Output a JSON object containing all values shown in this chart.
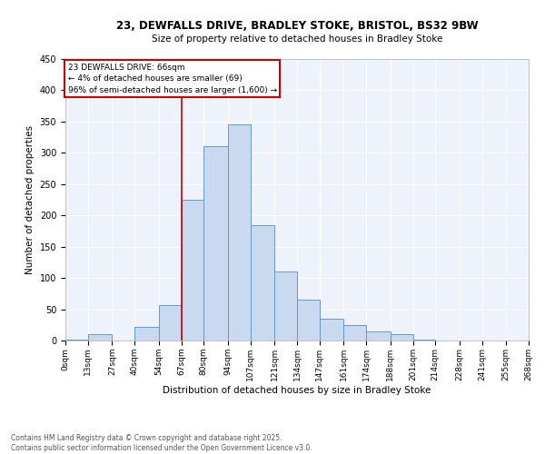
{
  "title_line1": "23, DEWFALLS DRIVE, BRADLEY STOKE, BRISTOL, BS32 9BW",
  "title_line2": "Size of property relative to detached houses in Bradley Stoke",
  "xlabel": "Distribution of detached houses by size in Bradley Stoke",
  "ylabel": "Number of detached properties",
  "footnote": "Contains HM Land Registry data © Crown copyright and database right 2025.\nContains public sector information licensed under the Open Government Licence v3.0.",
  "annotation_title": "23 DEWFALLS DRIVE: 66sqm",
  "annotation_line2": "← 4% of detached houses are smaller (69)",
  "annotation_line3": "96% of semi-detached houses are larger (1,600) →",
  "bar_color": "#c9d9f0",
  "bar_edge_color": "#6699cc",
  "vline_color": "#cc0000",
  "annotation_box_color": "#cc0000",
  "background_color": "#eef2fa",
  "bin_edges": [
    0,
    13,
    27,
    40,
    54,
    67,
    80,
    94,
    107,
    121,
    134,
    147,
    161,
    174,
    188,
    201,
    214,
    228,
    241,
    255,
    268
  ],
  "bin_labels": [
    "0sqm",
    "13sqm",
    "27sqm",
    "40sqm",
    "54sqm",
    "67sqm",
    "80sqm",
    "94sqm",
    "107sqm",
    "121sqm",
    "134sqm",
    "147sqm",
    "161sqm",
    "174sqm",
    "188sqm",
    "201sqm",
    "214sqm",
    "228sqm",
    "241sqm",
    "255sqm",
    "268sqm"
  ],
  "bar_heights": [
    2,
    10,
    0,
    22,
    57,
    225,
    310,
    345,
    185,
    110,
    65,
    35,
    25,
    15,
    10,
    2,
    0,
    0,
    0,
    0
  ],
  "ylim": [
    0,
    450
  ],
  "yticks": [
    0,
    50,
    100,
    150,
    200,
    250,
    300,
    350,
    400,
    450
  ],
  "vline_x": 67,
  "footnote_color": "#555555"
}
